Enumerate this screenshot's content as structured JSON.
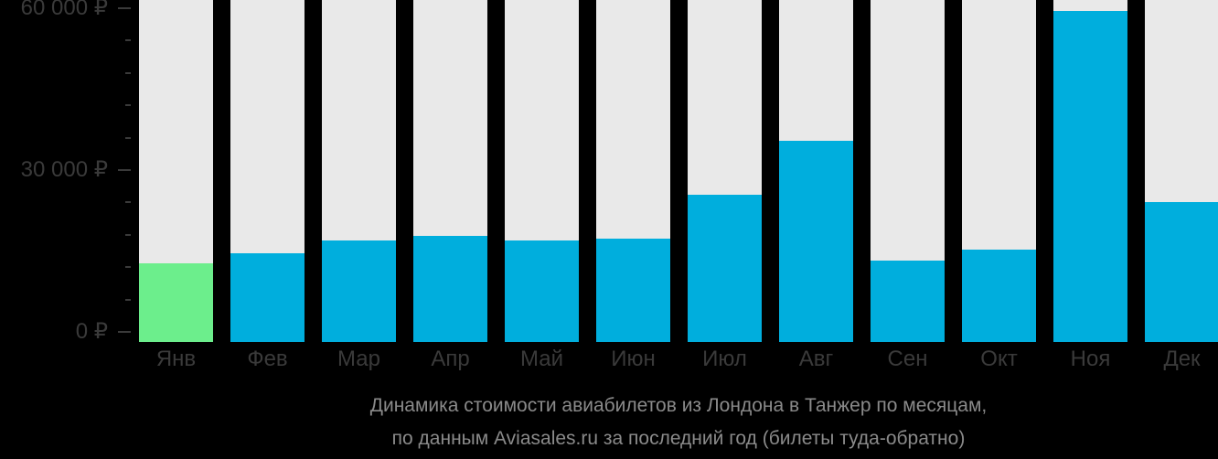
{
  "colors": {
    "background": "#000000",
    "bar_track": "#e9e9e9",
    "bar_default": "#00aedd",
    "bar_highlight": "#6cee8c",
    "axis_text": "#3a3a3a",
    "caption_text": "#8a8a8a"
  },
  "chart_data": {
    "type": "bar",
    "title": "Динамика стоимости авиабилетов из Лондона в Танжер по месяцам",
    "categories": [
      "Янв",
      "Фев",
      "Мар",
      "Апр",
      "Май",
      "Июн",
      "Июл",
      "Авг",
      "Сен",
      "Окт",
      "Ноя",
      "Дек"
    ],
    "values": [
      12700,
      14600,
      17000,
      17800,
      16900,
      17300,
      25500,
      35500,
      13300,
      15300,
      59500,
      24000
    ],
    "highlighted_index": 0,
    "currency": "₽",
    "xlabel": "",
    "ylabel": "",
    "ylim": [
      0,
      60000
    ],
    "y_major_ticks": [
      {
        "value": 0,
        "label": "0 ₽"
      },
      {
        "value": 30000,
        "label": "30 000 ₽"
      },
      {
        "value": 60000,
        "label": "60 000 ₽"
      }
    ],
    "y_minor_tick_step": 6000,
    "legend": "none",
    "grid": "off"
  },
  "caption": {
    "line1": "Динамика стоимости авиабилетов из Лондона в Танжер по месяцам,",
    "line2": "по данным Aviasales.ru за последний год (билеты туда-обратно)"
  }
}
